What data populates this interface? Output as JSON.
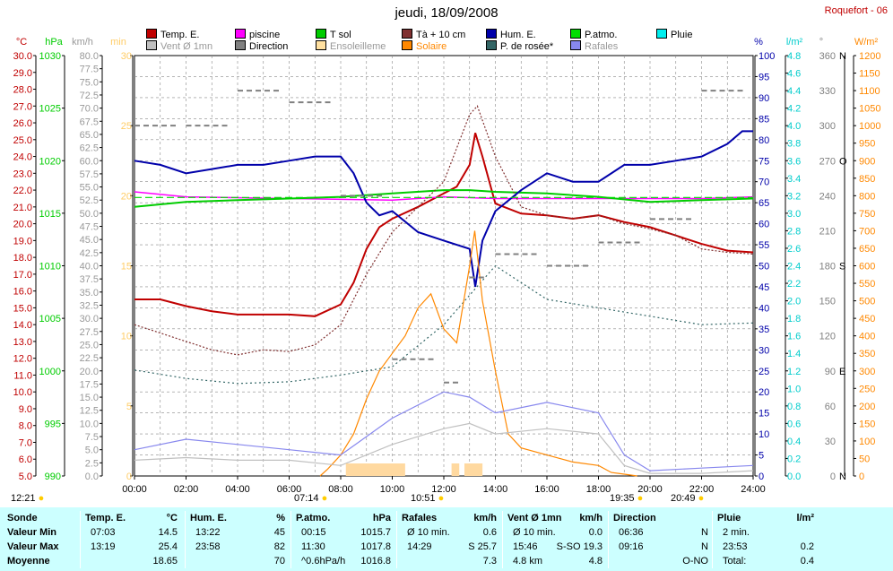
{
  "title": "jeudi, 18/09/2008",
  "station": "Roquefort - 06",
  "legend": [
    {
      "label": "Temp. E.",
      "color": "#c00000",
      "row": 0,
      "col": 0
    },
    {
      "label": "piscine",
      "color": "#ff00ff",
      "row": 0,
      "col": 1
    },
    {
      "label": "T sol",
      "color": "#00cc00",
      "row": 0,
      "col": 2
    },
    {
      "label": "Tà + 10 cm",
      "color": "#803030",
      "row": 0,
      "col": 3
    },
    {
      "label": "Hum. E.",
      "color": "#0000aa",
      "row": 0,
      "col": 4
    },
    {
      "label": "P.atmo.",
      "color": "#00dd00",
      "row": 0,
      "col": 5
    },
    {
      "label": "Pluie",
      "color": "#00eeee",
      "row": 0,
      "col": 6
    },
    {
      "label": "Vent Ø 1mn",
      "color": "#c0c0c0",
      "row": 1,
      "col": 0
    },
    {
      "label": "Direction",
      "color": "#808080",
      "row": 1,
      "col": 1
    },
    {
      "label": "Ensoleilleme",
      "color": "#ffe0a0",
      "row": 1,
      "col": 2
    },
    {
      "label": "Solaire",
      "color": "#ff8800",
      "row": 1,
      "col": 3
    },
    {
      "label": "P. de rosée*",
      "color": "#336666",
      "row": 1,
      "col": 4
    },
    {
      "label": "Rafales",
      "color": "#8888ee",
      "row": 1,
      "col": 5
    }
  ],
  "axes": {
    "temp": {
      "unit": "°C",
      "color": "#c00000",
      "ticks": [
        "30.0",
        "29.0",
        "28.0",
        "27.0",
        "26.0",
        "25.0",
        "24.0",
        "23.0",
        "22.0",
        "21.0",
        "20.0",
        "19.0",
        "18.0",
        "17.0",
        "16.0",
        "15.0",
        "14.0",
        "13.0",
        "12.0",
        "11.0",
        "10.0",
        "9.0",
        "8.0",
        "7.0",
        "6.0",
        "5.0"
      ]
    },
    "hpa": {
      "unit": "hPa",
      "color": "#00cc00",
      "ticks": [
        "1030",
        "1025",
        "1020",
        "1015",
        "1010",
        "1005",
        "1000",
        "995",
        "990"
      ]
    },
    "kmh": {
      "unit": "km/h",
      "color": "#999999",
      "ticks": [
        "80.0",
        "77.5",
        "75.0",
        "72.5",
        "70.0",
        "67.5",
        "65.0",
        "62.5",
        "60.0",
        "57.5",
        "55.0",
        "52.5",
        "50.0",
        "47.5",
        "45.0",
        "42.5",
        "40.0",
        "37.5",
        "35.0",
        "32.5",
        "30.0",
        "27.5",
        "25.0",
        "22.5",
        "20.0",
        "17.5",
        "15.0",
        "12.5",
        "10.0",
        "7.5",
        "5.0",
        "2.5",
        "0.0"
      ]
    },
    "min": {
      "unit": "min",
      "color": "#ffcc66",
      "ticks": [
        "30",
        "25",
        "20",
        "15",
        "10",
        "5",
        "0"
      ]
    },
    "pct": {
      "unit": "%",
      "color": "#0000aa",
      "ticks": [
        "100",
        "95",
        "90",
        "85",
        "80",
        "75",
        "70",
        "65",
        "60",
        "55",
        "50",
        "45",
        "40",
        "35",
        "30",
        "25",
        "20",
        "15",
        "10",
        "5",
        "0"
      ]
    },
    "lm2": {
      "unit": "l/m²",
      "color": "#00cccc",
      "ticks": [
        "4.8",
        "4.6",
        "4.4",
        "4.2",
        "4.0",
        "3.8",
        "3.6",
        "3.4",
        "3.2",
        "3.0",
        "2.8",
        "2.6",
        "2.4",
        "2.2",
        "2.0",
        "1.8",
        "1.6",
        "1.4",
        "1.2",
        "1.0",
        "0.8",
        "0.6",
        "0.4",
        "0.2",
        "0.0"
      ]
    },
    "deg": {
      "unit": "°",
      "color": "#808080",
      "ticks": [
        "360",
        "330",
        "300",
        "270",
        "240",
        "210",
        "180",
        "150",
        "120",
        "90",
        "60",
        "30",
        "0"
      ],
      "dirs": [
        "N",
        "",
        "",
        "O",
        "",
        "",
        "S",
        "",
        "",
        "E",
        "",
        "",
        "N"
      ]
    },
    "wm2": {
      "unit": "W/m²",
      "color": "#ff8800",
      "ticks": [
        "1200",
        "1150",
        "1100",
        "1050",
        "1000",
        "950",
        "900",
        "850",
        "800",
        "750",
        "700",
        "650",
        "600",
        "550",
        "500",
        "450",
        "400",
        "350",
        "300",
        "250",
        "200",
        "150",
        "100",
        "50",
        "0"
      ]
    }
  },
  "xticks": [
    "00:00",
    "02:00",
    "04:00",
    "06:00",
    "08:00",
    "10:00",
    "12:00",
    "14:00",
    "16:00",
    "18:00",
    "20:00",
    "22:00",
    "24:00"
  ],
  "sun_marks": [
    {
      "label": "12:21",
      "pos": "left"
    },
    {
      "label": "07:14",
      "pos": "sunrise"
    },
    {
      "label": "10:51",
      "pos": "noon"
    },
    {
      "label": "19:35",
      "pos": "sunset"
    },
    {
      "label": "20:49",
      "pos": "moon"
    }
  ],
  "chart_data": {
    "type": "line",
    "x_range_hours": [
      0,
      24
    ],
    "grid": true,
    "series": [
      {
        "name": "Temp. E.",
        "unit": "°C",
        "color": "#c00000",
        "x": [
          0,
          1,
          2,
          3,
          4,
          5,
          6,
          7,
          8,
          8.5,
          9,
          9.5,
          10,
          11,
          12,
          12.5,
          13,
          13.22,
          13.5,
          14,
          15,
          16,
          17,
          18,
          19,
          20,
          21,
          22,
          23,
          24
        ],
        "y": [
          15.5,
          15.5,
          15.1,
          14.8,
          14.6,
          14.6,
          14.6,
          14.5,
          15.2,
          16.5,
          18.5,
          19.8,
          20.3,
          21.0,
          21.8,
          22.2,
          23.5,
          25.4,
          24.0,
          21.2,
          20.6,
          20.5,
          20.3,
          20.5,
          20.1,
          19.8,
          19.3,
          18.8,
          18.4,
          18.3
        ]
      },
      {
        "name": "piscine",
        "unit": "°C",
        "color": "#ff00ff",
        "x": [
          0,
          2,
          6,
          10,
          12,
          14,
          16,
          18,
          20,
          22,
          24
        ],
        "y": [
          21.9,
          21.6,
          21.5,
          21.4,
          21.6,
          21.5,
          21.5,
          21.5,
          21.5,
          21.5,
          21.6
        ]
      },
      {
        "name": "T sol",
        "unit": "°C",
        "color": "#00cc00",
        "x": [
          0,
          2,
          4,
          6,
          8,
          10,
          12,
          13,
          14,
          16,
          18,
          20,
          22,
          24
        ],
        "y": [
          21.0,
          21.3,
          21.4,
          21.5,
          21.6,
          21.8,
          22.0,
          22.0,
          21.9,
          21.8,
          21.6,
          21.3,
          21.4,
          21.5
        ]
      },
      {
        "name": "Tà + 10 cm",
        "unit": "°C",
        "color": "#803030",
        "x": [
          0,
          1,
          2,
          3,
          4,
          5,
          6,
          7,
          8,
          9,
          10,
          11,
          12,
          13,
          13.3,
          14,
          15,
          16,
          17,
          18,
          19,
          20,
          21,
          22,
          23,
          24
        ],
        "y": [
          14.0,
          13.5,
          13.0,
          12.5,
          12.2,
          12.5,
          12.4,
          12.8,
          14.0,
          17.0,
          19.5,
          21.0,
          22.5,
          26.5,
          27.0,
          24.0,
          21.0,
          20.5,
          20.3,
          20.5,
          20.0,
          19.7,
          19.3,
          18.5,
          18.3,
          18.2
        ]
      },
      {
        "name": "Hum. E.",
        "unit": "%",
        "color": "#0000aa",
        "x": [
          0,
          1,
          2,
          3,
          4,
          5,
          6,
          7,
          8,
          8.5,
          9,
          9.5,
          10,
          11,
          12,
          12.5,
          13,
          13.22,
          13.5,
          14,
          15,
          16,
          17,
          18,
          19,
          20,
          21,
          22,
          23,
          23.58,
          24
        ],
        "y": [
          75,
          74,
          72,
          73,
          74,
          74,
          75,
          76,
          76,
          72,
          65,
          62,
          63,
          58,
          56,
          55,
          54,
          45,
          56,
          63,
          68,
          72,
          70,
          70,
          74,
          74,
          75,
          76,
          79,
          82,
          82
        ]
      },
      {
        "name": "P.atmo.",
        "unit": "hPa",
        "color": "#00dd00",
        "x": [
          0,
          12,
          24
        ],
        "y": [
          1016.5,
          1016.5,
          1016.5
        ]
      },
      {
        "name": "P. de rosée*",
        "unit": "°C",
        "color": "#336666",
        "x": [
          0,
          2,
          4,
          6,
          8,
          10,
          12,
          14,
          16,
          18,
          20,
          22,
          24
        ],
        "y": [
          11.3,
          10.8,
          10.5,
          10.6,
          11.0,
          11.5,
          14.0,
          17.5,
          15.5,
          15.0,
          14.5,
          14.0,
          14.1
        ]
      },
      {
        "name": "Solaire",
        "unit": "W/m²",
        "color": "#ff8800",
        "x": [
          7.2,
          7.5,
          8,
          8.5,
          9,
          9.5,
          10,
          10.5,
          11,
          11.5,
          12,
          12.5,
          13,
          13.2,
          13.5,
          14,
          14.5,
          15,
          16,
          17,
          18,
          18.5,
          19,
          19.5
        ],
        "y": [
          0,
          20,
          60,
          120,
          220,
          300,
          350,
          400,
          480,
          520,
          420,
          380,
          600,
          700,
          500,
          300,
          120,
          80,
          60,
          40,
          30,
          10,
          5,
          0
        ]
      },
      {
        "name": "Vent Ø 1mn",
        "unit": "km/h",
        "color": "#c0c0c0",
        "x": [
          0,
          2,
          4,
          6,
          8,
          10,
          12,
          13,
          14,
          16,
          18,
          19,
          20,
          22,
          24
        ],
        "y": [
          3.0,
          3.5,
          3.0,
          3.0,
          2.0,
          6.0,
          9.0,
          10.0,
          8.0,
          9.0,
          8.0,
          2.0,
          0.5,
          0.5,
          1.0
        ]
      },
      {
        "name": "Rafales",
        "unit": "km/h",
        "color": "#8888ee",
        "x": [
          0,
          2,
          4,
          6,
          8,
          10,
          12,
          13,
          14,
          16,
          18,
          19,
          20,
          22,
          24
        ],
        "y": [
          5.0,
          7.0,
          6.0,
          5.0,
          4.0,
          11.0,
          16.0,
          15.0,
          12.0,
          14.0,
          12.0,
          4.0,
          1.0,
          1.5,
          2.0
        ]
      },
      {
        "name": "Direction",
        "unit": "°",
        "color": "#808080",
        "x": [
          0,
          2,
          4,
          6,
          8,
          10,
          12,
          13,
          14,
          16,
          18,
          20,
          22,
          24
        ],
        "y": [
          300,
          300,
          330,
          320,
          240,
          100,
          80,
          170,
          190,
          180,
          200,
          220,
          330,
          330
        ]
      }
    ]
  },
  "table": {
    "headers": [
      {
        "label": "Sonde",
        "unit": ""
      },
      {
        "label": "Temp. E.",
        "unit": "°C"
      },
      {
        "label": "Hum. E.",
        "unit": "%"
      },
      {
        "label": "P.atmo.",
        "unit": "hPa"
      },
      {
        "label": "Rafales",
        "unit": "km/h"
      },
      {
        "label": "Vent Ø 1mn",
        "unit": "km/h"
      },
      {
        "label": "Direction",
        "unit": ""
      },
      {
        "label": "Pluie",
        "unit": "l/m²"
      }
    ],
    "rows": [
      {
        "label": "Valeur Min",
        "cells": [
          [
            "07:03",
            "14.5"
          ],
          [
            "13:22",
            "45"
          ],
          [
            "00:15",
            "1015.7"
          ],
          [
            "Ø 10 min.",
            "0.6"
          ],
          [
            "Ø 10 min.",
            "0.0"
          ],
          [
            "06:36",
            "N"
          ],
          [
            "2 min.",
            ""
          ]
        ]
      },
      {
        "label": "Valeur Max",
        "cells": [
          [
            "13:19",
            "25.4"
          ],
          [
            "23:58",
            "82"
          ],
          [
            "11:30",
            "1017.8"
          ],
          [
            "14:29",
            "S 25.7"
          ],
          [
            "15:46",
            "S-SO 19.3"
          ],
          [
            "09:16",
            "N"
          ],
          [
            "23:53",
            "0.2"
          ]
        ]
      },
      {
        "label": "Moyenne",
        "cells": [
          [
            "",
            "18.65"
          ],
          [
            "",
            "70"
          ],
          [
            "^0.6hPa/h",
            "1016.8"
          ],
          [
            "",
            "7.3"
          ],
          [
            "4.8 km",
            "4.8"
          ],
          [
            "",
            "O-NO"
          ],
          [
            "Total:",
            "0.4"
          ]
        ]
      }
    ]
  }
}
